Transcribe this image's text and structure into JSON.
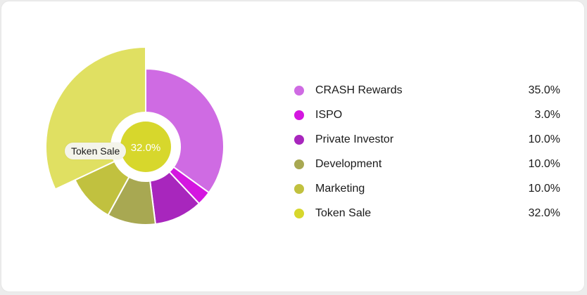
{
  "tooltip": {
    "label": "Token Sale"
  },
  "colors": {
    "crash_rewards": "#cf6be3",
    "ispo": "#d416e0",
    "private_investor": "#a826bd",
    "development": "#a8a852",
    "marketing": "#c1c13f",
    "token_sale": "#d7d72c",
    "token_sale_highlight": "#e0e062"
  },
  "chart_data": {
    "type": "pie",
    "categories": [
      "CRASH Rewards",
      "ISPO",
      "Private Investor",
      "Development",
      "Marketing",
      "Token Sale"
    ],
    "values": [
      35.0,
      3.0,
      10.0,
      10.0,
      10.0,
      32.0
    ],
    "value_labels": [
      "35.0%",
      "3.0%",
      "10.0%",
      "10.0%",
      "10.0%",
      "32.0%"
    ],
    "center_label": "32.0%",
    "highlighted": "Token Sale",
    "legend_position": "right"
  }
}
